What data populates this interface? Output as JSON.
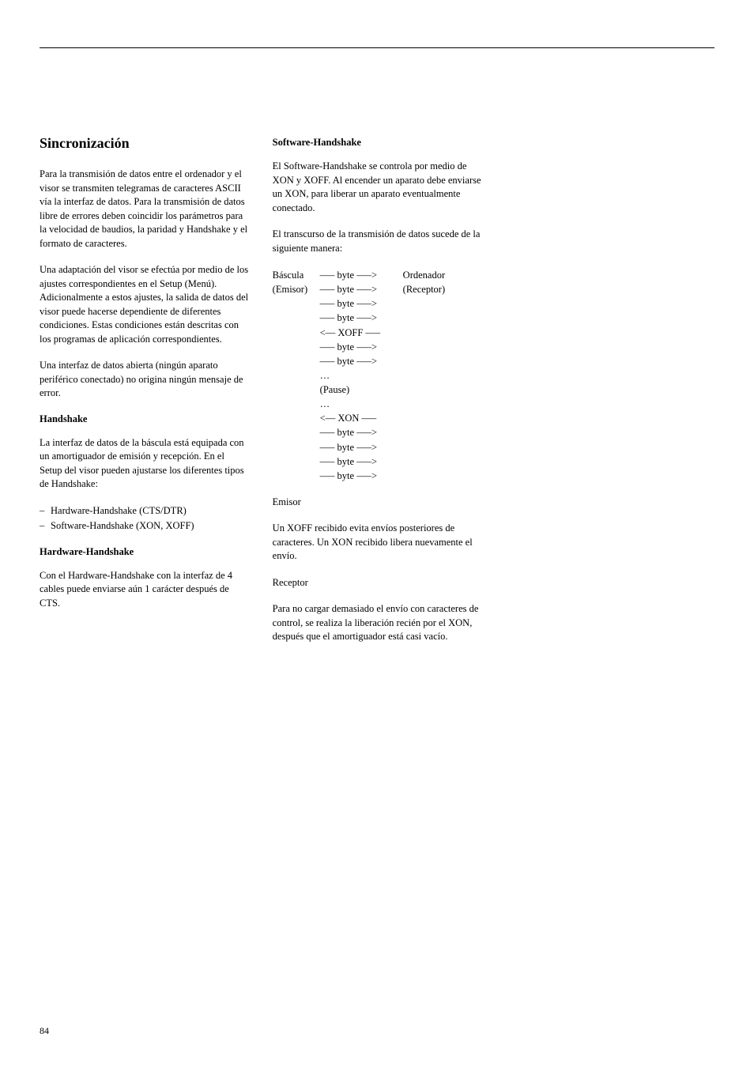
{
  "pageNumber": "84",
  "col1": {
    "title": "Sincronización",
    "p1": "Para la transmisión de datos entre el ordenador y el visor se transmiten tele­gramas de caracteres ASCII vía la inter­faz de datos. Para la transmisión de datos libre de errores deben coincidir los parámetros para la velocidad de baudios, la paridad y Handshake y el formato de caracteres.",
    "p2": "Una adaptación del visor se efectúa por medio de los ajustes correspondientes en el Setup (Menú). Adicionalmente a estos ajustes, la salida de datos del visor puede hacerse dependiente de diferen­tes condiciones. Estas condiciones están descritas con los programas de aplica­ción correspondientes.",
    "p3": "Una interfaz de datos abierta (ningún aparato periférico conectado) no origina ningún mensaje de error.",
    "sub1": "Handshake",
    "p4": "La interfaz de datos de la báscula está equipada con un amortiguador de emi­sión y recepción. En el Setup del visor pueden ajustarse los diferentes tipos de Handshake:",
    "li1": "Hardware-Handshake (CTS/DTR)",
    "li2": "Software-Handshake (XON, XOFF)",
    "sub2": "Hardware-Handshake",
    "p5": "Con el Hardware-Handshake con la interfaz de 4 cables puede enviarse aún 1 carácter después de CTS."
  },
  "col2": {
    "sub1": "Software-Handshake",
    "p1": "El Software-Handshake se controla por medio de XON y XOFF. Al encender un aparato debe enviarse un XON, para liberar un aparato eventualmente conectado.",
    "p2": "El transcurso de la transmisión de datos sucede de la siguiente manera:",
    "diagram": {
      "leftTop": "Báscula",
      "leftSub": "(Emisor)",
      "rightTop": "Ordenador",
      "rightSub": "(Receptor)",
      "byte": "––– byte –––>",
      "xoff": "<–– XOFF –––",
      "xon": "<–– XON –––",
      "dots": "…",
      "pause": "(Pause)"
    },
    "p3": "Emisor",
    "p4": "Un XOFF recibido evita envíos posterio­res de caracteres. Un XON recibido libe­ra nuevamente el envío.",
    "p5": "Receptor",
    "p6": "Para no cargar demasiado el envío con caracteres de control, se realiza la libe­ración recién por el XON, después que el amortiguador está casi vacío."
  }
}
